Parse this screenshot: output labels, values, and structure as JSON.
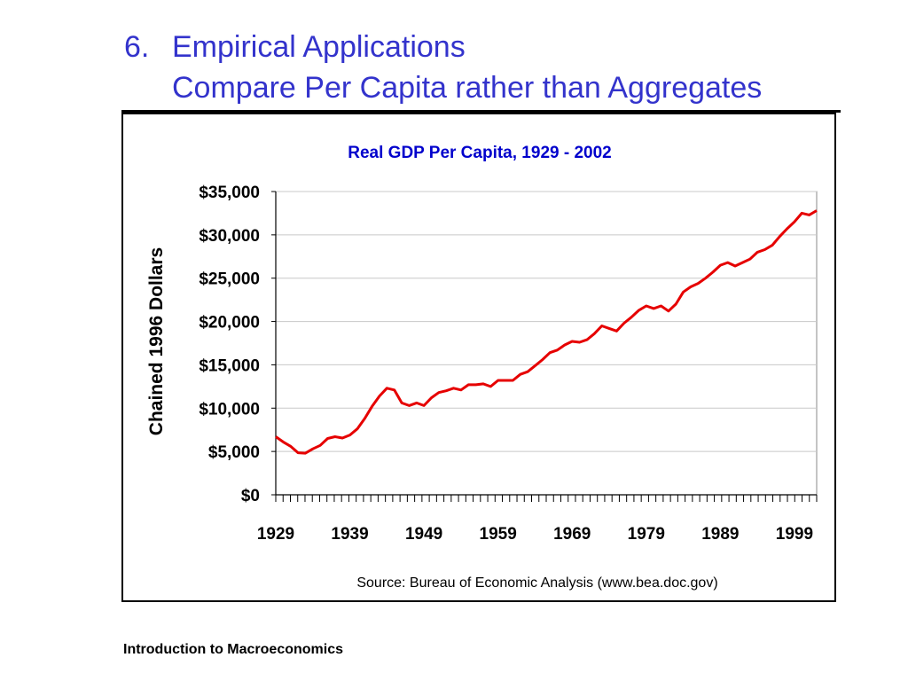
{
  "slide": {
    "title_num": "6.",
    "title_line1": "Empirical Applications",
    "title_line2": "Compare Per Capita rather than Aggregates",
    "footer": "Introduction to Macroeconomics"
  },
  "colors": {
    "title": "#3333cc",
    "chart_title": "#0000cc",
    "series": "#e60000"
  },
  "chart_data": {
    "type": "line",
    "title": "Real GDP Per Capita, 1929 - 2002",
    "ylabel": "Chained 1996 Dollars",
    "xlabel": "",
    "source": "Source: Bureau of Economic Analysis (www.bea.doc.gov)",
    "ylim": [
      0,
      35000
    ],
    "xlim": [
      1929,
      2002
    ],
    "yticks": [
      0,
      5000,
      10000,
      15000,
      20000,
      25000,
      30000,
      35000
    ],
    "ytick_labels": [
      "$0",
      "$5,000",
      "$10,000",
      "$15,000",
      "$20,000",
      "$25,000",
      "$30,000",
      "$35,000"
    ],
    "xtick_labels": [
      "1929",
      "1939",
      "1949",
      "1959",
      "1969",
      "1979",
      "1989",
      "1999"
    ],
    "grid": true,
    "series": [
      {
        "x": [
          1929,
          1930,
          1931,
          1932,
          1933,
          1934,
          1935,
          1936,
          1937,
          1938,
          1939,
          1940,
          1941,
          1942,
          1943,
          1944,
          1945,
          1946,
          1947,
          1948,
          1949,
          1950,
          1951,
          1952,
          1953,
          1954,
          1955,
          1956,
          1957,
          1958,
          1959,
          1960,
          1961,
          1962,
          1963,
          1964,
          1965,
          1966,
          1967,
          1968,
          1969,
          1970,
          1971,
          1972,
          1973,
          1974,
          1975,
          1976,
          1977,
          1978,
          1979,
          1980,
          1981,
          1982,
          1983,
          1984,
          1985,
          1986,
          1987,
          1988,
          1989,
          1990,
          1991,
          1992,
          1993,
          1994,
          1995,
          1996,
          1997,
          1998,
          1999,
          2000,
          2001,
          2002
        ],
        "values": [
          6700,
          6100,
          5600,
          4850,
          4800,
          5300,
          5700,
          6500,
          6700,
          6550,
          6900,
          7600,
          8800,
          10200,
          11400,
          12300,
          12100,
          10600,
          10300,
          10600,
          10300,
          11200,
          11800,
          12000,
          12300,
          12100,
          12700,
          12700,
          12800,
          12500,
          13200,
          13200,
          13200,
          13900,
          14200,
          14900,
          15600,
          16400,
          16700,
          17300,
          17700,
          17600,
          17900,
          18600,
          19500,
          19200,
          18900,
          19800,
          20500,
          21300,
          21800,
          21500,
          21800,
          21200,
          22000,
          23400,
          24000,
          24400,
          25000,
          25700,
          26500,
          26800,
          26400,
          26800,
          27200,
          28000,
          28300,
          28800,
          29800,
          30700,
          31500,
          32500,
          32300,
          32800
        ]
      }
    ]
  }
}
